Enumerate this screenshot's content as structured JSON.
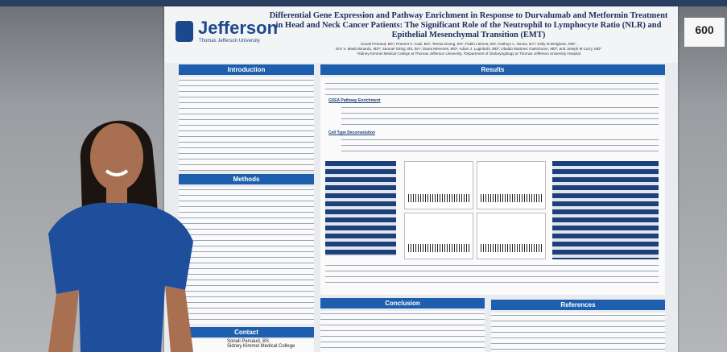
{
  "sign": "600",
  "poster": {
    "logo": {
      "name": "Jefferson",
      "subtitle": "Thomas Jefferson University"
    },
    "title": "Differential Gene Expression and Pathway Enrichment in Response to Durvalumab and Metformin Treatment in Head and Neck Cancer Patients: The Significant Role of the Neutrophil to Lymphocyte Ratio (NLR) and Epithelial Mesenchymal Transition (EMT)",
    "authors": [
      "Sonali Persaud, BS¹; Praneet C. Kaki, BS¹; Teresa Duong, BS¹; Pablo Llerena, BS¹; Kathryn L. Nunes, BA¹; Kelly M Bridgham, MD¹;",
      "Eric V. Mastrolonardo, MD¹; Samuel String, BS, BA¹; Diana Menezes, MD¹; Adam J. Luginbuhl, MD²; Ubaldo Martinez Outschoorn, MD²; and Joseph M Curry, MD²",
      "¹Sidney Kimmel Medical College at Thomas Jefferson University, ²Department of Otolaryngology at Thomas Jefferson University Hospital"
    ],
    "sections": {
      "introduction": "Introduction",
      "methods": "Methods",
      "contact": "Contact",
      "results": "Results",
      "conclusion": "Conclusion",
      "references": "References"
    },
    "results_subheads": [
      "GSEA Pathway Enrichment",
      "Cell Type Deconvolution"
    ],
    "contact": [
      "Sonali Persaud, BS",
      "Sidney Kimmel Medical College"
    ]
  }
}
